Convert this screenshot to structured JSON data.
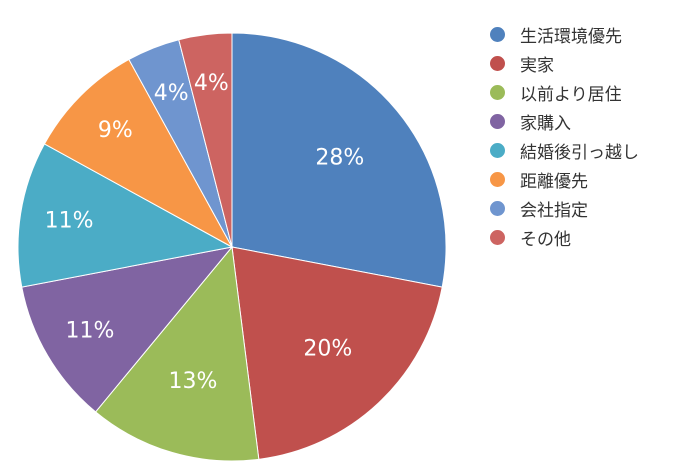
{
  "chart_data": {
    "type": "pie",
    "title": "",
    "slices": [
      {
        "name": "生活環境優先",
        "value": 28,
        "label": "28%",
        "color": "#4f81bd"
      },
      {
        "name": "実家",
        "value": 20,
        "label": "20%",
        "color": "#c0504d"
      },
      {
        "name": "以前より居住",
        "value": 13,
        "label": "13%",
        "color": "#9bbb59"
      },
      {
        "name": "家購入",
        "value": 11,
        "label": "11%",
        "color": "#8064a2"
      },
      {
        "name": "結婚後引っ越し",
        "value": 11,
        "label": "11%",
        "color": "#4bacc6"
      },
      {
        "name": "距離優先",
        "value": 9,
        "label": "9%",
        "color": "#f79646"
      },
      {
        "name": "会社指定",
        "value": 4,
        "label": "4%",
        "color": "#6f95cf"
      },
      {
        "name": "その他",
        "value": 4,
        "label": "4%",
        "color": "#cd6461"
      }
    ],
    "legend_position": "right"
  }
}
